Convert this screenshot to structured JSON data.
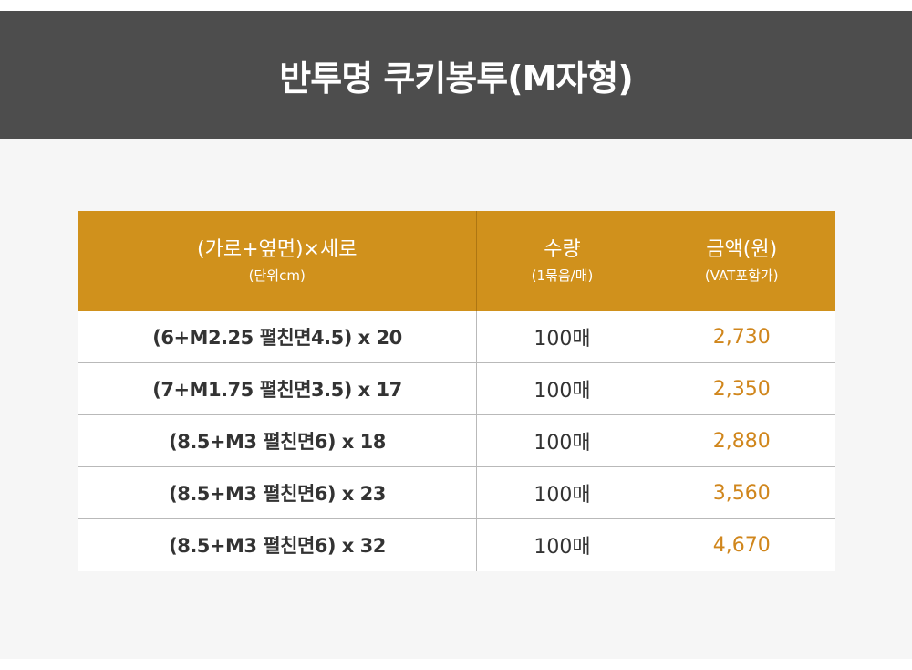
{
  "title": "반투명 쿠키봉투(M자형)",
  "colors": {
    "title_bar_bg": "#4d4d4d",
    "header_bg": "#d0911c",
    "price_text": "#d0861c",
    "content_bg": "#f6f6f6"
  },
  "table": {
    "headers": [
      {
        "main": "(가로+옆면)×세로",
        "sub": "(단위cm)"
      },
      {
        "main": "수량",
        "sub": "(1묶음/매)"
      },
      {
        "main": "금액(원)",
        "sub": "(VAT포함가)"
      }
    ],
    "rows": [
      {
        "size": "(6+M2.25 펼친면4.5) x 20",
        "qty": "100매",
        "price": "2,730"
      },
      {
        "size": "(7+M1.75 펼친면3.5) x 17",
        "qty": "100매",
        "price": "2,350"
      },
      {
        "size": "(8.5+M3 펼친면6) x 18",
        "qty": "100매",
        "price": "2,880"
      },
      {
        "size": "(8.5+M3 펼친면6) x 23",
        "qty": "100매",
        "price": "3,560"
      },
      {
        "size": "(8.5+M3 펼친면6) x 32",
        "qty": "100매",
        "price": "4,670"
      }
    ]
  }
}
